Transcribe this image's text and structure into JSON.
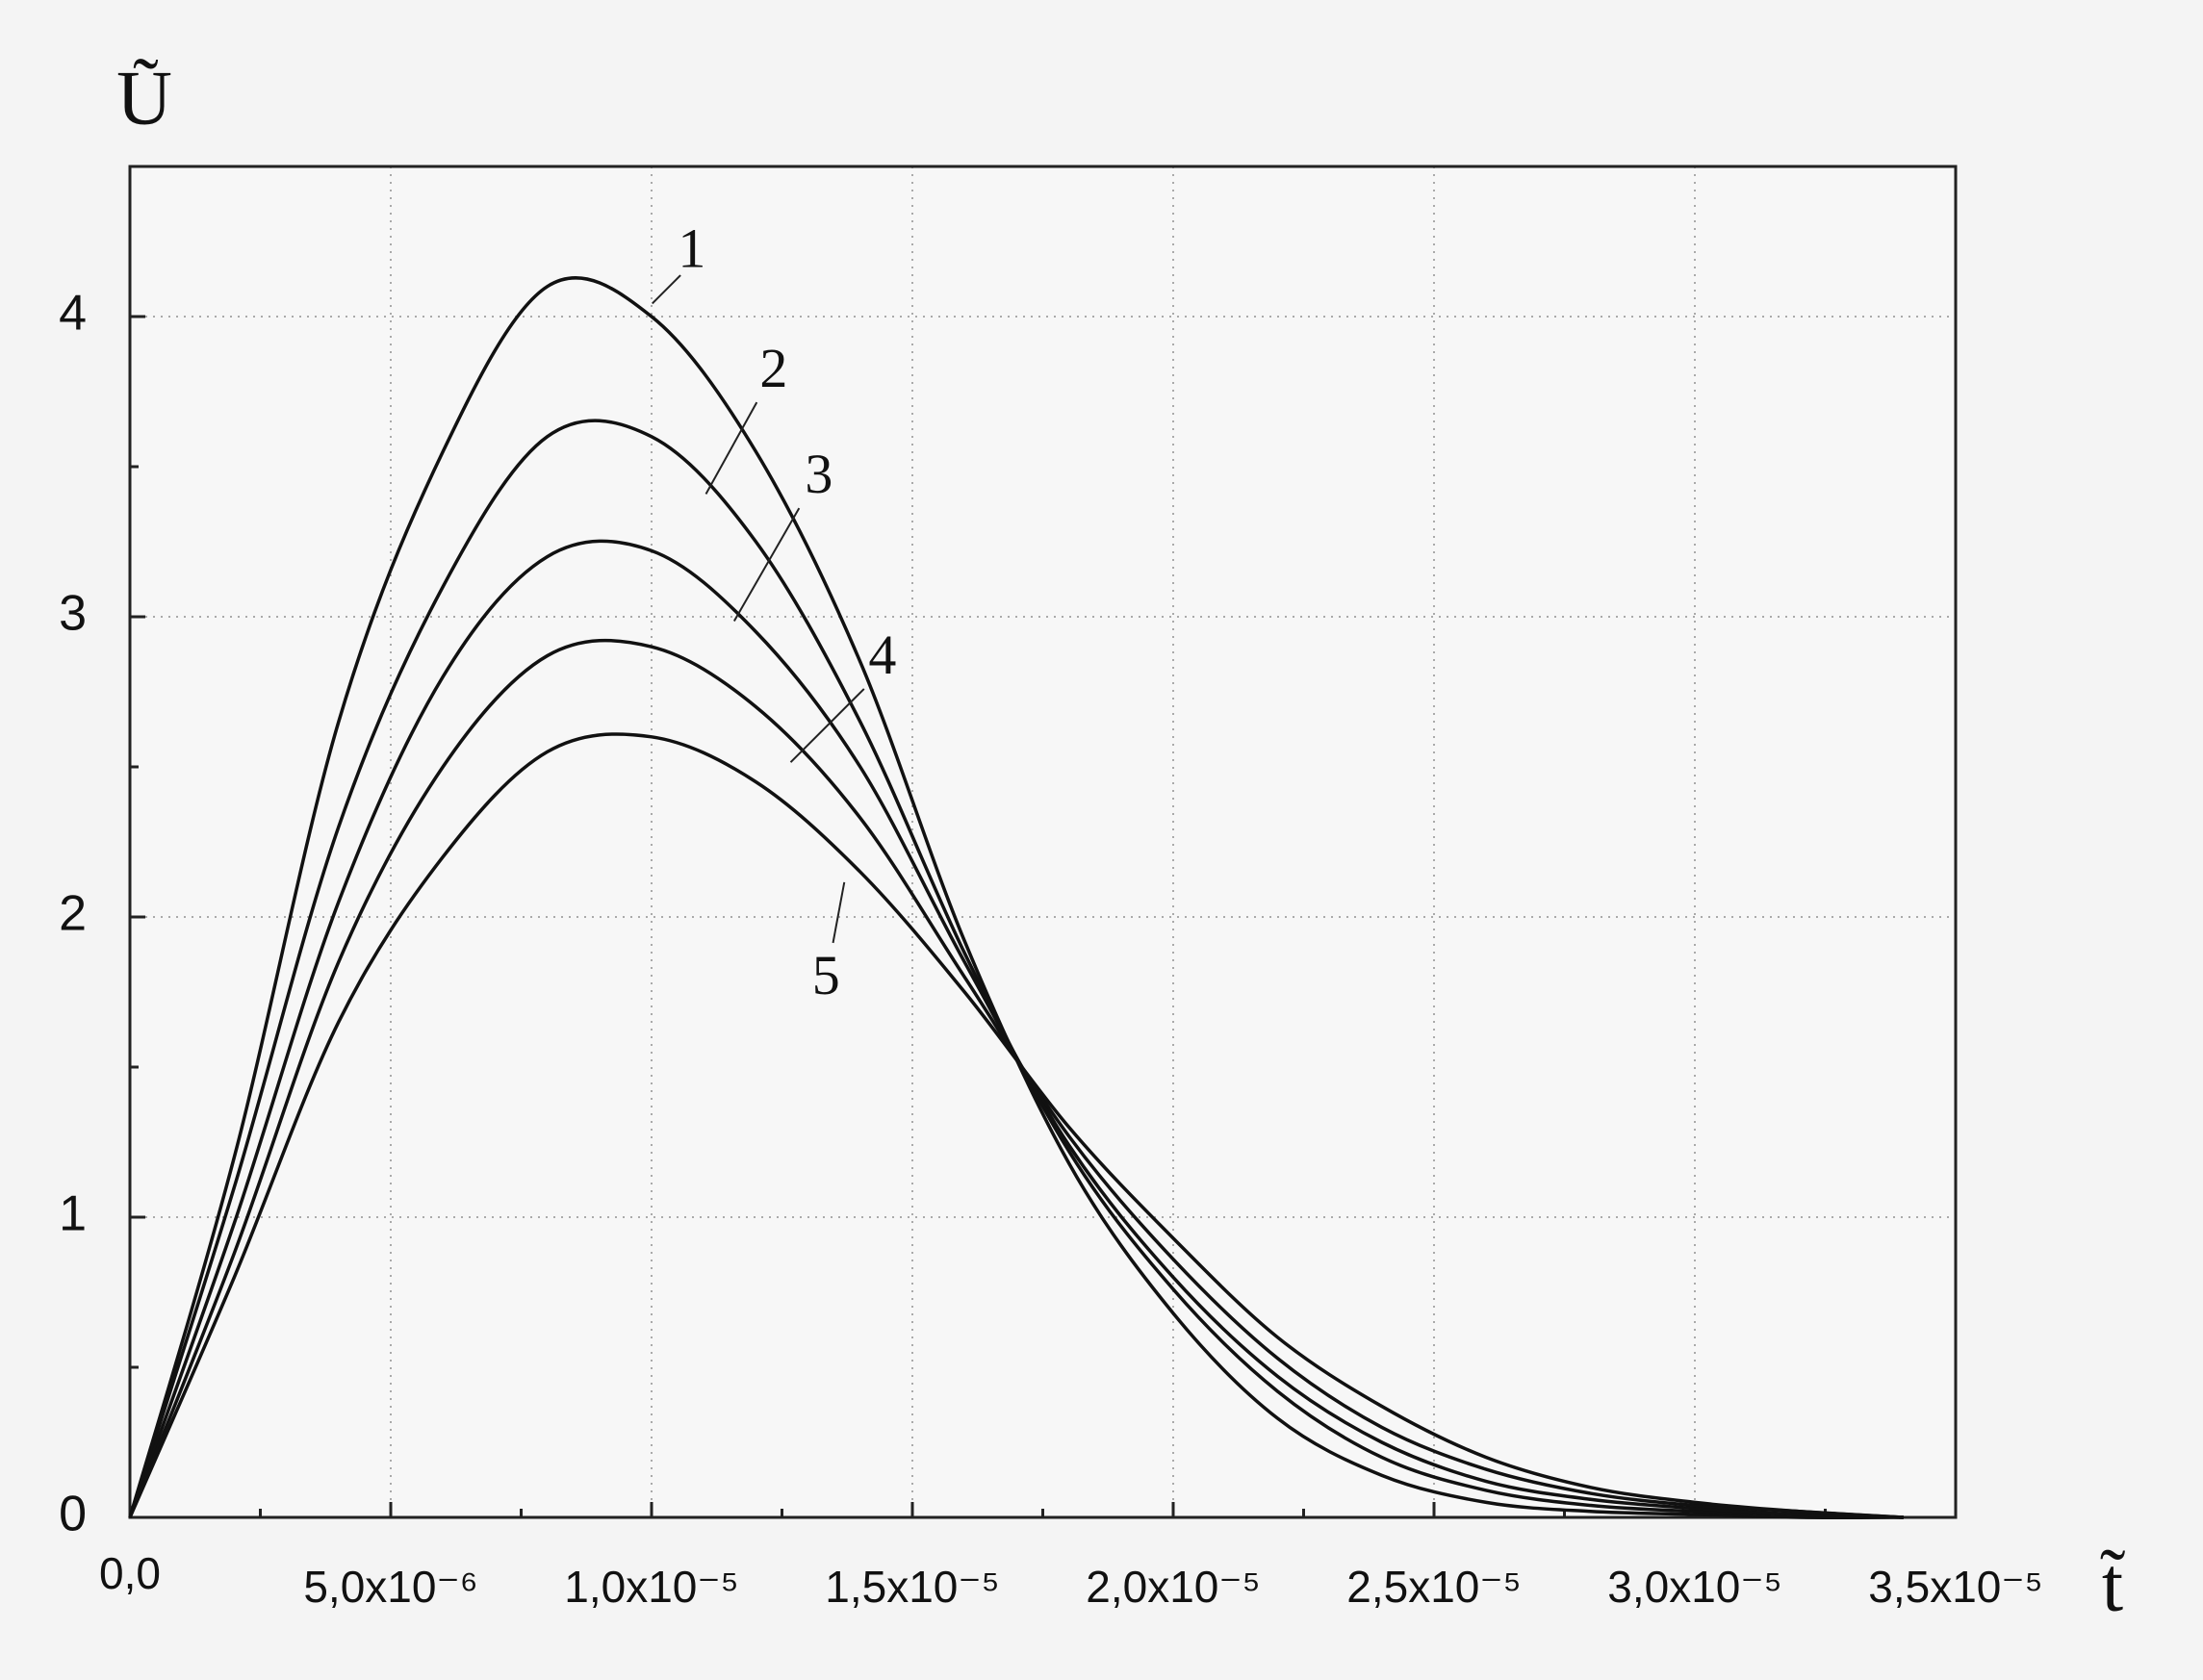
{
  "chart_data": {
    "type": "line",
    "y_label": "Ũ",
    "x_label": "t̃",
    "x": [
      0,
      2e-06,
      4e-06,
      6e-06,
      8e-06,
      1e-05,
      1.2e-05,
      1.4e-05,
      1.6e-05,
      1.8e-05,
      2e-05,
      2.2e-05,
      2.4e-05,
      2.6e-05,
      2.8e-05,
      3e-05,
      3.2e-05,
      3.4e-05
    ],
    "series": [
      {
        "name": "1",
        "color": "#111111",
        "values": [
          0,
          1.2,
          2.65,
          3.55,
          4.1,
          4.0,
          3.55,
          2.85,
          1.92,
          1.18,
          0.68,
          0.33,
          0.14,
          0.05,
          0.02,
          0.01,
          0,
          0
        ]
      },
      {
        "name": "2",
        "color": "#111111",
        "values": [
          0,
          1.1,
          2.3,
          3.1,
          3.6,
          3.6,
          3.25,
          2.65,
          1.88,
          1.22,
          0.76,
          0.42,
          0.2,
          0.09,
          0.04,
          0.02,
          0.01,
          0
        ]
      },
      {
        "name": "3",
        "color": "#111111",
        "values": [
          0,
          0.98,
          2.05,
          2.8,
          3.2,
          3.22,
          2.95,
          2.5,
          1.85,
          1.24,
          0.8,
          0.47,
          0.25,
          0.12,
          0.06,
          0.03,
          0.01,
          0
        ]
      },
      {
        "name": "4",
        "color": "#111111",
        "values": [
          0,
          0.88,
          1.85,
          2.5,
          2.87,
          2.9,
          2.7,
          2.33,
          1.8,
          1.27,
          0.86,
          0.53,
          0.3,
          0.16,
          0.08,
          0.04,
          0.02,
          0
        ]
      },
      {
        "name": "5",
        "color": "#111111",
        "values": [
          0,
          0.8,
          1.65,
          2.2,
          2.55,
          2.6,
          2.45,
          2.15,
          1.75,
          1.3,
          0.93,
          0.6,
          0.37,
          0.2,
          0.1,
          0.05,
          0.02,
          0
        ]
      }
    ],
    "xlim": [
      0,
      3.5e-05
    ],
    "ylim": [
      0,
      4.5
    ],
    "xticks": [
      {
        "value": 0,
        "label": "0,0"
      },
      {
        "value": 5e-06,
        "label": "5,0x10⁻⁶"
      },
      {
        "value": 1e-05,
        "label": "1,0x10⁻⁵"
      },
      {
        "value": 1.5e-05,
        "label": "1,5x10⁻⁵"
      },
      {
        "value": 2e-05,
        "label": "2,0x10⁻⁵"
      },
      {
        "value": 2.5e-05,
        "label": "2,5x10⁻⁵"
      },
      {
        "value": 3e-05,
        "label": "3,0x10⁻⁵"
      },
      {
        "value": 3.5e-05,
        "label": "3,5x10⁻⁵"
      }
    ],
    "yticks": [
      0,
      1,
      2,
      3,
      4
    ],
    "grid": true
  }
}
